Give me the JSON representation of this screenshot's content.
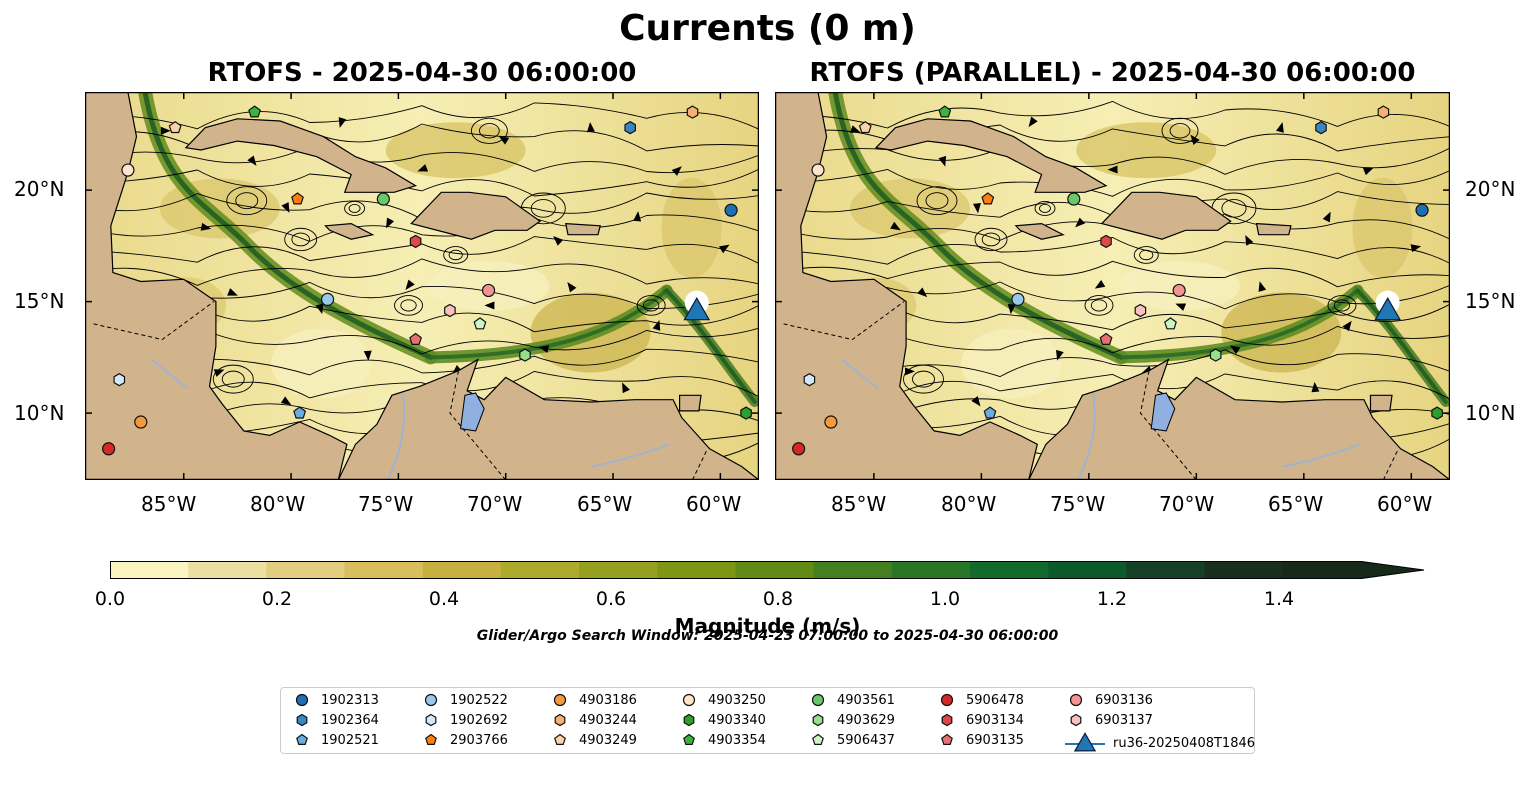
{
  "figure": {
    "title": "Currents (0 m)",
    "panels": [
      {
        "title": "RTOFS - 2025-04-30 06:00:00"
      },
      {
        "title": "RTOFS (PARALLEL) - 2025-04-30 06:00:00"
      }
    ],
    "lat_labels": [
      "20°N",
      "15°N",
      "10°N"
    ],
    "lon_labels": [
      "85°W",
      "80°W",
      "75°W",
      "70°W",
      "65°W",
      "60°W"
    ],
    "colorbar": {
      "label": "Magnitude (m/s)",
      "ticks": [
        "0.0",
        "0.2",
        "0.4",
        "0.6",
        "0.8",
        "1.0",
        "1.2",
        "1.4"
      ],
      "range": [
        0,
        1.6
      ],
      "colors": [
        "#fbf5c2",
        "#ecdfa0",
        "#e3cd7e",
        "#d8be5c",
        "#c6b040",
        "#aeaa2b",
        "#96a020",
        "#7e9614",
        "#628a17",
        "#44801f",
        "#2a7627",
        "#126a2c",
        "#0c5a2a",
        "#153f26",
        "#1a2e1e",
        "#172a1a"
      ]
    },
    "search_window": "Glider/Argo Search Window: 2025-04-23 07:00:00 to 2025-04-30 06:00:00",
    "colors": {
      "land": "#d2b48c",
      "lake": "#8fb0e0",
      "glider": "#1f77b4"
    }
  },
  "legend": [
    {
      "label": "1902313",
      "marker": "circle",
      "color": "#1f6fb4"
    },
    {
      "label": "1902364",
      "marker": "hexagon",
      "color": "#3a86c0"
    },
    {
      "label": "1902521",
      "marker": "pentagon",
      "color": "#6aaee0"
    },
    {
      "label": "1902522",
      "marker": "circle",
      "color": "#9ac8ec"
    },
    {
      "label": "1902692",
      "marker": "hexagon",
      "color": "#d2e8f8"
    },
    {
      "label": "2903766",
      "marker": "pentagon",
      "color": "#ff7f0e"
    },
    {
      "label": "4903186",
      "marker": "circle",
      "color": "#f59a3c"
    },
    {
      "label": "4903244",
      "marker": "hexagon",
      "color": "#f8b070"
    },
    {
      "label": "4903249",
      "marker": "pentagon",
      "color": "#fdd2a6"
    },
    {
      "label": "4903250",
      "marker": "circle",
      "color": "#fde4cc"
    },
    {
      "label": "4903340",
      "marker": "hexagon",
      "color": "#2ca02c"
    },
    {
      "label": "4903354",
      "marker": "pentagon",
      "color": "#3cb43c"
    },
    {
      "label": "4903561",
      "marker": "circle",
      "color": "#6ac86a"
    },
    {
      "label": "4903629",
      "marker": "hexagon",
      "color": "#98df8a"
    },
    {
      "label": "5906437",
      "marker": "pentagon",
      "color": "#ccf5c4"
    },
    {
      "label": "5906478",
      "marker": "circle",
      "color": "#d62728"
    },
    {
      "label": "6903134",
      "marker": "hexagon",
      "color": "#e04848"
    },
    {
      "label": "6903135",
      "marker": "pentagon",
      "color": "#e87070"
    },
    {
      "label": "6903136",
      "marker": "circle",
      "color": "#f29494"
    },
    {
      "label": "6903137",
      "marker": "hexagon",
      "color": "#fac0c0"
    },
    {
      "label": "ru36-20250408T1846",
      "marker": "triangle",
      "color": "#1f77b4"
    }
  ],
  "observations": [
    {
      "id": "1902313",
      "lon": -59.5,
      "lat": 19.1
    },
    {
      "id": "1902364",
      "lon": -64.2,
      "lat": 22.8
    },
    {
      "id": "1902521",
      "lon": -79.6,
      "lat": 10.0
    },
    {
      "id": "1902522",
      "lon": -78.3,
      "lat": 15.1
    },
    {
      "id": "1902692",
      "lon": -88.0,
      "lat": 11.5
    },
    {
      "id": "2903766",
      "lon": -79.7,
      "lat": 19.6
    },
    {
      "id": "4903186",
      "lon": -87.0,
      "lat": 9.6
    },
    {
      "id": "4903244",
      "lon": -61.3,
      "lat": 23.5
    },
    {
      "id": "4903249",
      "lon": -85.4,
      "lat": 22.8
    },
    {
      "id": "4903250",
      "lon": -87.6,
      "lat": 20.9
    },
    {
      "id": "4903340",
      "lon": -58.8,
      "lat": 10.0
    },
    {
      "id": "4903354",
      "lon": -81.7,
      "lat": 23.5
    },
    {
      "id": "4903561",
      "lon": -75.7,
      "lat": 19.6
    },
    {
      "id": "4903629",
      "lon": -69.1,
      "lat": 12.6
    },
    {
      "id": "5906437",
      "lon": -71.2,
      "lat": 14.0
    },
    {
      "id": "5906478",
      "lon": -88.5,
      "lat": 8.4
    },
    {
      "id": "6903134",
      "lon": -74.2,
      "lat": 17.7
    },
    {
      "id": "6903135",
      "lon": -74.2,
      "lat": 13.3
    },
    {
      "id": "6903136",
      "lon": -70.8,
      "lat": 15.5
    },
    {
      "id": "6903137",
      "lon": -72.6,
      "lat": 14.6
    },
    {
      "id": "ru36-20250408T1846",
      "lon": -61.1,
      "lat": 14.6
    }
  ]
}
